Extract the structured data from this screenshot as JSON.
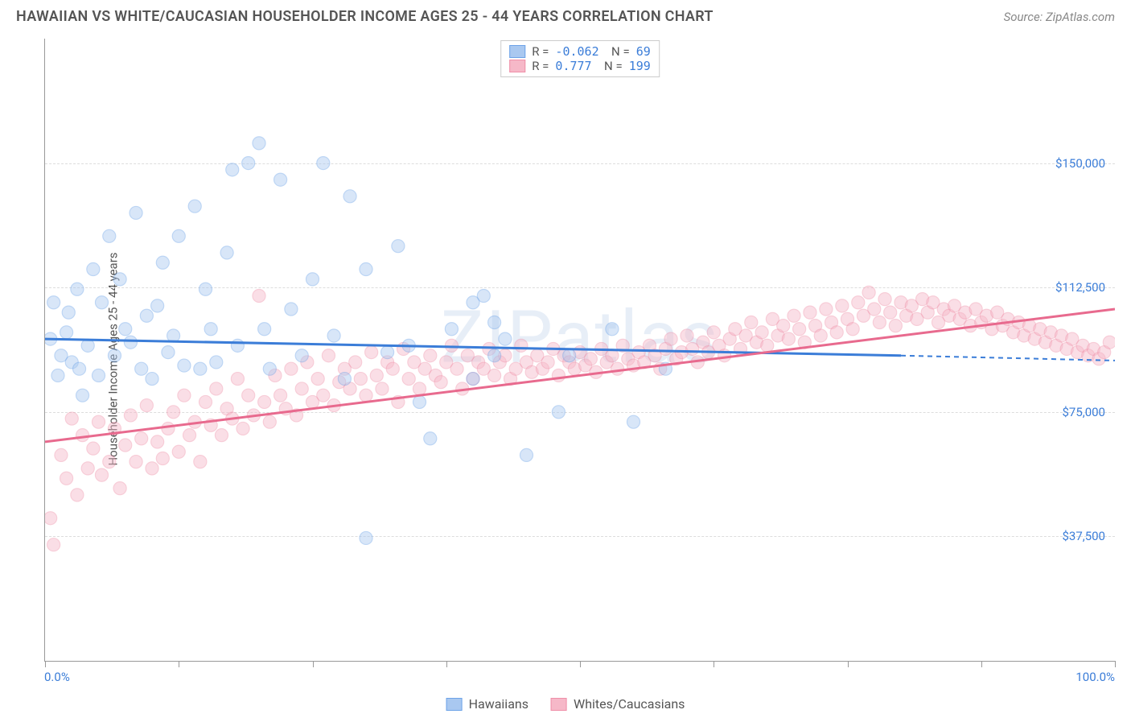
{
  "title": "HAWAIIAN VS WHITE/CAUCASIAN HOUSEHOLDER INCOME AGES 25 - 44 YEARS CORRELATION CHART",
  "source": "Source: ZipAtlas.com",
  "watermark": "ZIPatlas",
  "ylabel": "Householder Income Ages 25 - 44 years",
  "chart": {
    "type": "scatter-correlation",
    "xlim": [
      0,
      100
    ],
    "ylim": [
      0,
      187500
    ],
    "yticks": [
      {
        "v": 37500,
        "label": "$37,500"
      },
      {
        "v": 75000,
        "label": "$75,000"
      },
      {
        "v": 112500,
        "label": "$112,500"
      },
      {
        "v": 150000,
        "label": "$150,000"
      }
    ],
    "xtick_positions": [
      0,
      12.5,
      25,
      37.5,
      50,
      62.5,
      75,
      87.5,
      100
    ],
    "xtick_labels": [
      {
        "v": 0,
        "label": "0.0%"
      },
      {
        "v": 100,
        "label": "100.0%"
      }
    ],
    "grid_color": "#dddddd",
    "axis_color": "#999999",
    "background_color": "#ffffff",
    "marker_radius": 8,
    "marker_opacity": 0.45,
    "line_width": 3,
    "series": [
      {
        "name": "Hawaiians",
        "color_fill": "#a9c8f0",
        "color_stroke": "#6da3e8",
        "line_color": "#3b7dd8",
        "R": "-0.062",
        "N": "69",
        "trend": {
          "x0": 0,
          "y0": 97000,
          "x1": 80,
          "y1": 92000,
          "dash_to_x": 100,
          "dash_to_y": 90500
        },
        "points": [
          [
            0.5,
            97000
          ],
          [
            0.8,
            108000
          ],
          [
            1.2,
            86000
          ],
          [
            1.5,
            92000
          ],
          [
            2,
            99000
          ],
          [
            2.2,
            105000
          ],
          [
            2.5,
            90000
          ],
          [
            3,
            112000
          ],
          [
            3.2,
            88000
          ],
          [
            3.5,
            80000
          ],
          [
            4,
            95000
          ],
          [
            4.5,
            118000
          ],
          [
            5,
            86000
          ],
          [
            5.3,
            108000
          ],
          [
            6,
            128000
          ],
          [
            6.5,
            92000
          ],
          [
            7,
            115000
          ],
          [
            7.5,
            100000
          ],
          [
            8,
            96000
          ],
          [
            8.5,
            135000
          ],
          [
            9,
            88000
          ],
          [
            9.5,
            104000
          ],
          [
            10,
            85000
          ],
          [
            10.5,
            107000
          ],
          [
            11,
            120000
          ],
          [
            11.5,
            93000
          ],
          [
            12,
            98000
          ],
          [
            12.5,
            128000
          ],
          [
            13,
            89000
          ],
          [
            14,
            137000
          ],
          [
            14.5,
            88000
          ],
          [
            15,
            112000
          ],
          [
            15.5,
            100000
          ],
          [
            16,
            90000
          ],
          [
            17,
            123000
          ],
          [
            17.5,
            148000
          ],
          [
            18,
            95000
          ],
          [
            19,
            150000
          ],
          [
            20,
            156000
          ],
          [
            20.5,
            100000
          ],
          [
            21,
            88000
          ],
          [
            22,
            145000
          ],
          [
            23,
            106000
          ],
          [
            24,
            92000
          ],
          [
            25,
            115000
          ],
          [
            26,
            150000
          ],
          [
            27,
            98000
          ],
          [
            28,
            85000
          ],
          [
            28.5,
            140000
          ],
          [
            30,
            118000
          ],
          [
            32,
            93000
          ],
          [
            33,
            125000
          ],
          [
            34,
            95000
          ],
          [
            35,
            78000
          ],
          [
            36,
            67000
          ],
          [
            38,
            100000
          ],
          [
            40,
            85000
          ],
          [
            41,
            110000
          ],
          [
            42,
            92000
          ],
          [
            43,
            97000
          ],
          [
            45,
            62000
          ],
          [
            48,
            75000
          ],
          [
            49,
            92000
          ],
          [
            53,
            100000
          ],
          [
            55,
            72000
          ],
          [
            58,
            88000
          ],
          [
            30,
            37000
          ],
          [
            40,
            108000
          ],
          [
            42,
            102000
          ]
        ]
      },
      {
        "name": "Whites/Caucasians",
        "color_fill": "#f6b8c8",
        "color_stroke": "#ef8fa8",
        "line_color": "#e86a8e",
        "R": "0.777",
        "N": "199",
        "trend": {
          "x0": 0,
          "y0": 66000,
          "x1": 100,
          "y1": 106000
        },
        "points": [
          [
            0.5,
            43000
          ],
          [
            0.8,
            35000
          ],
          [
            1.5,
            62000
          ],
          [
            2,
            55000
          ],
          [
            2.5,
            73000
          ],
          [
            3,
            50000
          ],
          [
            3.5,
            68000
          ],
          [
            4,
            58000
          ],
          [
            4.5,
            64000
          ],
          [
            5,
            72000
          ],
          [
            5.3,
            56000
          ],
          [
            6,
            60000
          ],
          [
            6.5,
            70000
          ],
          [
            7,
            52000
          ],
          [
            7.5,
            65000
          ],
          [
            8,
            74000
          ],
          [
            8.5,
            60000
          ],
          [
            9,
            67000
          ],
          [
            9.5,
            77000
          ],
          [
            10,
            58000
          ],
          [
            10.5,
            66000
          ],
          [
            11,
            61000
          ],
          [
            11.5,
            70000
          ],
          [
            12,
            75000
          ],
          [
            12.5,
            63000
          ],
          [
            13,
            80000
          ],
          [
            13.5,
            68000
          ],
          [
            14,
            72000
          ],
          [
            14.5,
            60000
          ],
          [
            15,
            78000
          ],
          [
            15.5,
            71000
          ],
          [
            16,
            82000
          ],
          [
            16.5,
            68000
          ],
          [
            17,
            76000
          ],
          [
            17.5,
            73000
          ],
          [
            18,
            85000
          ],
          [
            18.5,
            70000
          ],
          [
            19,
            80000
          ],
          [
            19.5,
            74000
          ],
          [
            20,
            110000
          ],
          [
            20.5,
            78000
          ],
          [
            21,
            72000
          ],
          [
            21.5,
            86000
          ],
          [
            22,
            80000
          ],
          [
            22.5,
            76000
          ],
          [
            23,
            88000
          ],
          [
            23.5,
            74000
          ],
          [
            24,
            82000
          ],
          [
            24.5,
            90000
          ],
          [
            25,
            78000
          ],
          [
            25.5,
            85000
          ],
          [
            26,
            80000
          ],
          [
            26.5,
            92000
          ],
          [
            27,
            77000
          ],
          [
            27.5,
            84000
          ],
          [
            28,
            88000
          ],
          [
            28.5,
            82000
          ],
          [
            29,
            90000
          ],
          [
            29.5,
            85000
          ],
          [
            30,
            80000
          ],
          [
            30.5,
            93000
          ],
          [
            31,
            86000
          ],
          [
            31.5,
            82000
          ],
          [
            32,
            90000
          ],
          [
            32.5,
            88000
          ],
          [
            33,
            78000
          ],
          [
            33.5,
            94000
          ],
          [
            34,
            85000
          ],
          [
            34.5,
            90000
          ],
          [
            35,
            82000
          ],
          [
            35.5,
            88000
          ],
          [
            36,
            92000
          ],
          [
            36.5,
            86000
          ],
          [
            37,
            84000
          ],
          [
            37.5,
            90000
          ],
          [
            38,
            95000
          ],
          [
            38.5,
            88000
          ],
          [
            39,
            82000
          ],
          [
            39.5,
            92000
          ],
          [
            40,
            85000
          ],
          [
            40.5,
            90000
          ],
          [
            41,
            88000
          ],
          [
            41.5,
            94000
          ],
          [
            42,
            86000
          ],
          [
            42.5,
            90000
          ],
          [
            43,
            92000
          ],
          [
            43.5,
            85000
          ],
          [
            44,
            88000
          ],
          [
            44.5,
            95000
          ],
          [
            45,
            90000
          ],
          [
            45.5,
            87000
          ],
          [
            46,
            92000
          ],
          [
            46.5,
            88000
          ],
          [
            47,
            90000
          ],
          [
            47.5,
            94000
          ],
          [
            48,
            86000
          ],
          [
            48.5,
            92000
          ],
          [
            49,
            90000
          ],
          [
            49.5,
            88000
          ],
          [
            50,
            93000
          ],
          [
            50.5,
            89000
          ],
          [
            51,
            91000
          ],
          [
            51.5,
            87000
          ],
          [
            52,
            94000
          ],
          [
            52.5,
            90000
          ],
          [
            53,
            92000
          ],
          [
            53.5,
            88000
          ],
          [
            54,
            95000
          ],
          [
            54.5,
            91000
          ],
          [
            55,
            89000
          ],
          [
            55.5,
            93000
          ],
          [
            56,
            90000
          ],
          [
            56.5,
            95000
          ],
          [
            57,
            92000
          ],
          [
            57.5,
            88000
          ],
          [
            58,
            94000
          ],
          [
            58.5,
            97000
          ],
          [
            59,
            91000
          ],
          [
            59.5,
            93000
          ],
          [
            60,
            98000
          ],
          [
            60.5,
            94000
          ],
          [
            61,
            90000
          ],
          [
            61.5,
            96000
          ],
          [
            62,
            93000
          ],
          [
            62.5,
            99000
          ],
          [
            63,
            95000
          ],
          [
            63.5,
            92000
          ],
          [
            64,
            97000
          ],
          [
            64.5,
            100000
          ],
          [
            65,
            94000
          ],
          [
            65.5,
            98000
          ],
          [
            66,
            102000
          ],
          [
            66.5,
            96000
          ],
          [
            67,
            99000
          ],
          [
            67.5,
            95000
          ],
          [
            68,
            103000
          ],
          [
            68.5,
            98000
          ],
          [
            69,
            101000
          ],
          [
            69.5,
            97000
          ],
          [
            70,
            104000
          ],
          [
            70.5,
            100000
          ],
          [
            71,
            96000
          ],
          [
            71.5,
            105000
          ],
          [
            72,
            101000
          ],
          [
            72.5,
            98000
          ],
          [
            73,
            106000
          ],
          [
            73.5,
            102000
          ],
          [
            74,
            99000
          ],
          [
            74.5,
            107000
          ],
          [
            75,
            103000
          ],
          [
            75.5,
            100000
          ],
          [
            76,
            108000
          ],
          [
            76.5,
            104000
          ],
          [
            77,
            111000
          ],
          [
            77.5,
            106000
          ],
          [
            78,
            102000
          ],
          [
            78.5,
            109000
          ],
          [
            79,
            105000
          ],
          [
            79.5,
            101000
          ],
          [
            80,
            108000
          ],
          [
            80.5,
            104000
          ],
          [
            81,
            107000
          ],
          [
            81.5,
            103000
          ],
          [
            82,
            109000
          ],
          [
            82.5,
            105000
          ],
          [
            83,
            108000
          ],
          [
            83.5,
            102000
          ],
          [
            84,
            106000
          ],
          [
            84.5,
            104000
          ],
          [
            85,
            107000
          ],
          [
            85.5,
            103000
          ],
          [
            86,
            105000
          ],
          [
            86.5,
            101000
          ],
          [
            87,
            106000
          ],
          [
            87.5,
            102000
          ],
          [
            88,
            104000
          ],
          [
            88.5,
            100000
          ],
          [
            89,
            105000
          ],
          [
            89.5,
            101000
          ],
          [
            90,
            103000
          ],
          [
            90.5,
            99000
          ],
          [
            91,
            102000
          ],
          [
            91.5,
            98000
          ],
          [
            92,
            101000
          ],
          [
            92.5,
            97000
          ],
          [
            93,
            100000
          ],
          [
            93.5,
            96000
          ],
          [
            94,
            99000
          ],
          [
            94.5,
            95000
          ],
          [
            95,
            98000
          ],
          [
            95.5,
            94000
          ],
          [
            96,
            97000
          ],
          [
            96.5,
            93000
          ],
          [
            97,
            95000
          ],
          [
            97.5,
            92000
          ],
          [
            98,
            94000
          ],
          [
            98.5,
            91000
          ],
          [
            99,
            93000
          ],
          [
            99.5,
            96000
          ]
        ]
      }
    ]
  },
  "legend_bottom": [
    {
      "swatch_fill": "#a9c8f0",
      "swatch_stroke": "#6da3e8",
      "label": "Hawaiians"
    },
    {
      "swatch_fill": "#f6b8c8",
      "swatch_stroke": "#ef8fa8",
      "label": "Whites/Caucasians"
    }
  ]
}
